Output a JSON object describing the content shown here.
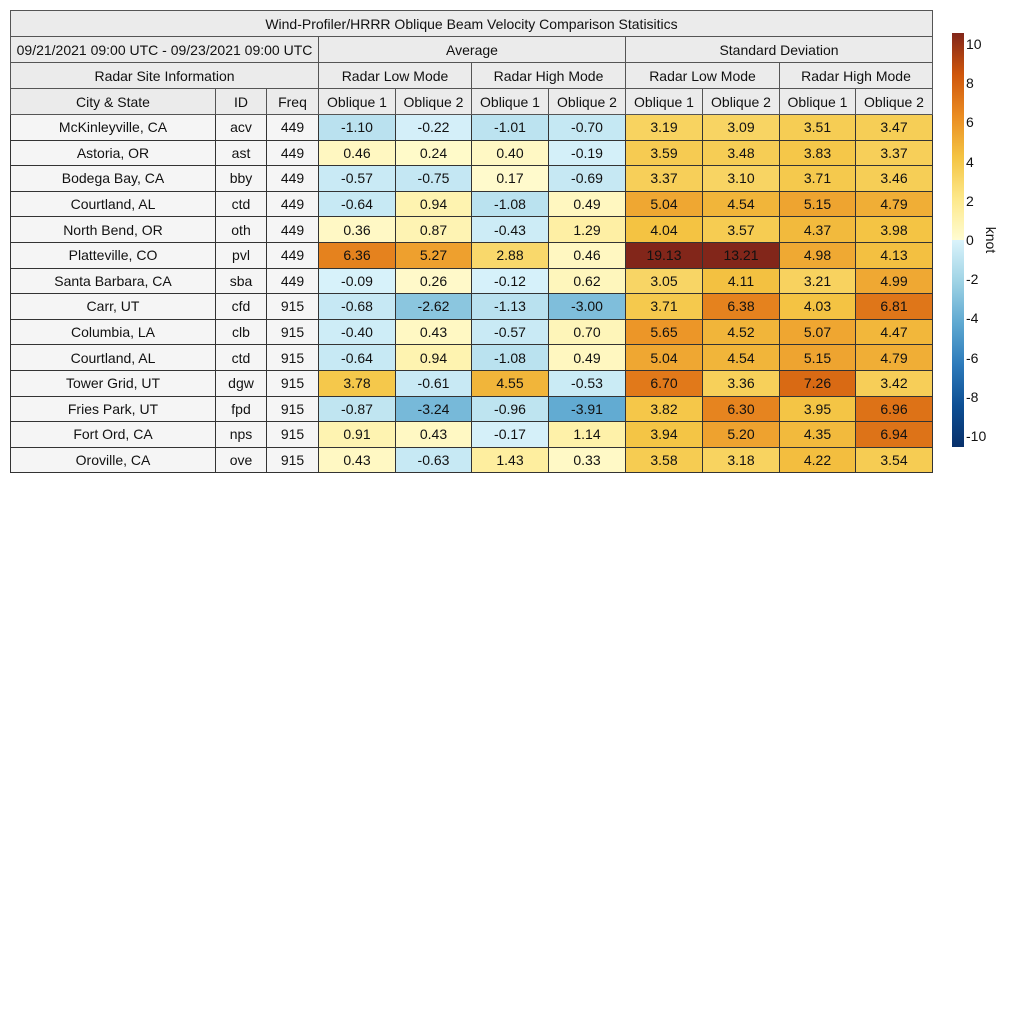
{
  "title": "Wind-Profiler/HRRR Oblique Beam Velocity Comparison Statisitics",
  "date_range": "09/21/2021 09:00 UTC - 09/23/2021 09:00 UTC",
  "site_info_label": "Radar Site Information",
  "groups": [
    "Average",
    "Standard Deviation"
  ],
  "modes": [
    "Radar Low Mode",
    "Radar High Mode",
    "Radar Low Mode",
    "Radar High Mode"
  ],
  "columns": [
    "City & State",
    "ID",
    "Freq",
    "Oblique 1",
    "Oblique 2",
    "Oblique 1",
    "Oblique 2",
    "Oblique 1",
    "Oblique 2",
    "Oblique 1",
    "Oblique 2"
  ],
  "chart_data": {
    "type": "heatmap",
    "title": "Wind-Profiler/HRRR Oblique Beam Velocity Comparison Statisitics",
    "colorbar": {
      "label": "knot",
      "range": [
        -10,
        10
      ],
      "ticks": [
        10,
        8,
        6,
        4,
        2,
        0,
        -2,
        -4,
        -6,
        -8,
        -10
      ],
      "colors": {
        "-10": "#08306b",
        "-8": "#0d4f94",
        "-6": "#2d7bbb",
        "-4": "#5fa9d1",
        "-2": "#9fd3e5",
        "0neg": "#daf3fb",
        "0pos": "#fffcd2",
        "2": "#fde88a",
        "4": "#f4c443",
        "6": "#ea8c22",
        "8": "#cf560c",
        "10": "#82261a"
      }
    },
    "rows": [
      {
        "city": "McKinleyville, CA",
        "id": "acv",
        "freq": "449",
        "avg": [
          "-1.10",
          "-0.22",
          "-1.01",
          "-0.70"
        ],
        "std": [
          "3.19",
          "3.09",
          "3.51",
          "3.47"
        ]
      },
      {
        "city": "Astoria, OR",
        "id": "ast",
        "freq": "449",
        "avg": [
          "0.46",
          "0.24",
          "0.40",
          "-0.19"
        ],
        "std": [
          "3.59",
          "3.48",
          "3.83",
          "3.37"
        ]
      },
      {
        "city": "Bodega Bay, CA",
        "id": "bby",
        "freq": "449",
        "avg": [
          "-0.57",
          "-0.75",
          "0.17",
          "-0.69"
        ],
        "std": [
          "3.37",
          "3.10",
          "3.71",
          "3.46"
        ]
      },
      {
        "city": "Courtland, AL",
        "id": "ctd",
        "freq": "449",
        "avg": [
          "-0.64",
          "0.94",
          "-1.08",
          "0.49"
        ],
        "std": [
          "5.04",
          "4.54",
          "5.15",
          "4.79"
        ]
      },
      {
        "city": "North Bend, OR",
        "id": "oth",
        "freq": "449",
        "avg": [
          "0.36",
          "0.87",
          "-0.43",
          "1.29"
        ],
        "std": [
          "4.04",
          "3.57",
          "4.37",
          "3.98"
        ]
      },
      {
        "city": "Platteville, CO",
        "id": "pvl",
        "freq": "449",
        "avg": [
          "6.36",
          "5.27",
          "2.88",
          "0.46"
        ],
        "std": [
          "19.13",
          "13.21",
          "4.98",
          "4.13"
        ]
      },
      {
        "city": "Santa Barbara, CA",
        "id": "sba",
        "freq": "449",
        "avg": [
          "-0.09",
          "0.26",
          "-0.12",
          "0.62"
        ],
        "std": [
          "3.05",
          "4.11",
          "3.21",
          "4.99"
        ]
      },
      {
        "city": "Carr, UT",
        "id": "cfd",
        "freq": "915",
        "avg": [
          "-0.68",
          "-2.62",
          "-1.13",
          "-3.00"
        ],
        "std": [
          "3.71",
          "6.38",
          "4.03",
          "6.81"
        ]
      },
      {
        "city": "Columbia, LA",
        "id": "clb",
        "freq": "915",
        "avg": [
          "-0.40",
          "0.43",
          "-0.57",
          "0.70"
        ],
        "std": [
          "5.65",
          "4.52",
          "5.07",
          "4.47"
        ]
      },
      {
        "city": "Courtland, AL",
        "id": "ctd",
        "freq": "915",
        "avg": [
          "-0.64",
          "0.94",
          "-1.08",
          "0.49"
        ],
        "std": [
          "5.04",
          "4.54",
          "5.15",
          "4.79"
        ]
      },
      {
        "city": "Tower Grid, UT",
        "id": "dgw",
        "freq": "915",
        "avg": [
          "3.78",
          "-0.61",
          "4.55",
          "-0.53"
        ],
        "std": [
          "6.70",
          "3.36",
          "7.26",
          "3.42"
        ]
      },
      {
        "city": "Fries Park, UT",
        "id": "fpd",
        "freq": "915",
        "avg": [
          "-0.87",
          "-3.24",
          "-0.96",
          "-3.91"
        ],
        "std": [
          "3.82",
          "6.30",
          "3.95",
          "6.96"
        ]
      },
      {
        "city": "Fort Ord, CA",
        "id": "nps",
        "freq": "915",
        "avg": [
          "0.91",
          "0.43",
          "-0.17",
          "1.14"
        ],
        "std": [
          "3.94",
          "5.20",
          "4.35",
          "6.94"
        ]
      },
      {
        "city": "Oroville, CA",
        "id": "ove",
        "freq": "915",
        "avg": [
          "0.43",
          "-0.63",
          "1.43",
          "0.33"
        ],
        "std": [
          "3.58",
          "3.18",
          "4.22",
          "3.54"
        ]
      }
    ]
  }
}
